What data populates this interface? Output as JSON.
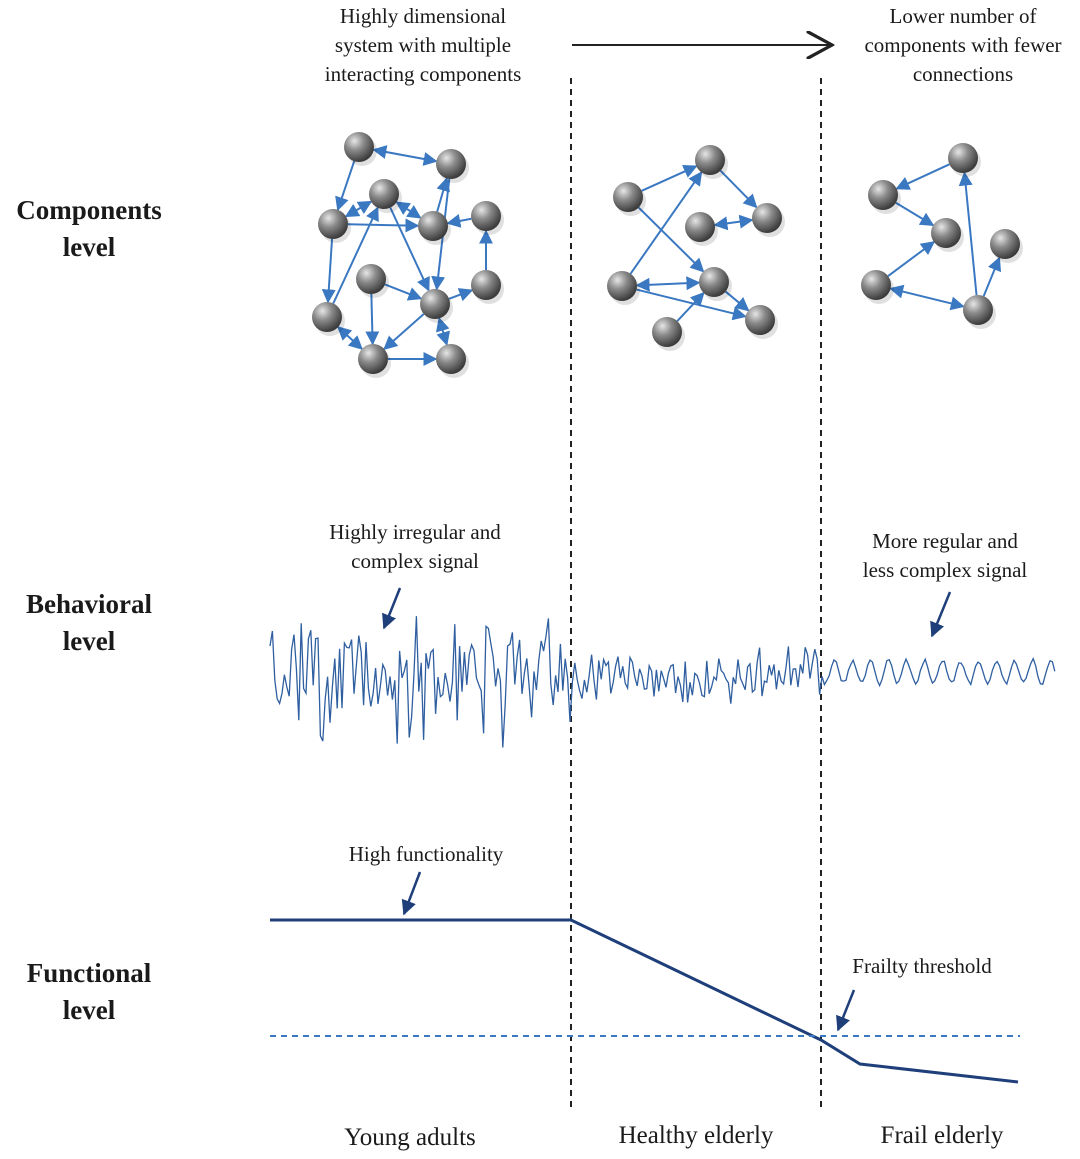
{
  "header": {
    "left_note": [
      "Highly dimensional",
      "system with multiple",
      "interacting components"
    ],
    "right_note": [
      "Lower number of",
      "components with fewer",
      "connections"
    ]
  },
  "rows": {
    "components": [
      "Components",
      "level"
    ],
    "behavioral": [
      "Behavioral",
      "level"
    ],
    "functional": [
      "Functional",
      "level"
    ]
  },
  "annotations": {
    "irregular": [
      "Highly irregular and",
      "complex signal"
    ],
    "regular": [
      "More regular and",
      "less complex signal"
    ],
    "high_function": "High functionality",
    "frailty_threshold": "Frailty threshold"
  },
  "groups": [
    "Young adults",
    "Healthy elderly",
    "Frail elderly"
  ],
  "colors": {
    "arrow": "#3a78c2",
    "signal": "#2f5fa0",
    "function_line": "#1f3f7a",
    "threshold": "#3a78c2",
    "node": "#7a7a7a",
    "divider": "#222222"
  }
}
